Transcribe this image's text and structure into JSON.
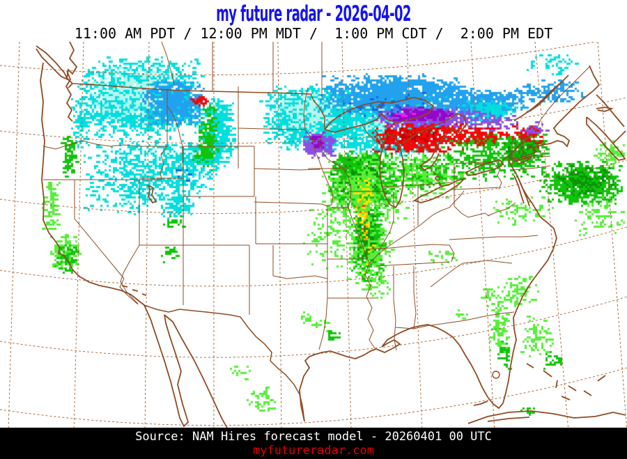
{
  "header": {
    "title": "my future radar - 2026-04-02",
    "title_color": "#1414ee",
    "times": "11:00 AM PDT / 12:00 PM MDT /  1:00 PM CDT /  2:00 PM EDT"
  },
  "footer": {
    "source": "Source: NAM Hires forecast model - 20260401 00 UTC",
    "link": "myfutureradar.com",
    "bar_color": "#000000",
    "source_color": "#ffffff",
    "link_color": "#e00000"
  },
  "map": {
    "background": "#ffffff",
    "line_color": "#8f4a22",
    "graticule_color": "#a2602e"
  },
  "radar": {
    "cell": 3,
    "palette": {
      "pale": "#b4f6ee",
      "cyan": "#00dede",
      "blue": "#22a2ee",
      "deep": "#1266e0",
      "violet": "#8a50e6",
      "purple": "#9606c8",
      "magenta": "#f818f8",
      "red": "#f20808",
      "dred": "#c40404",
      "lgreen": "#57ee3a",
      "green": "#10c40a",
      "dgreen": "#0a9406",
      "yellow": "#ffe300",
      "orange": "#ff9e00",
      "ored": "#ff5200"
    },
    "blobs": [
      [
        "cyan",
        200,
        78,
        90,
        58,
        0.9
      ],
      [
        "pale",
        195,
        70,
        70,
        40,
        0.35
      ],
      [
        "blue",
        247,
        87,
        48,
        34,
        0.95
      ],
      [
        "cyan",
        205,
        190,
        90,
        62,
        0.26
      ],
      [
        "cyan",
        272,
        178,
        48,
        42,
        0.3
      ],
      [
        "green",
        293,
        160,
        24,
        18,
        0.25
      ],
      [
        "cyan",
        253,
        235,
        26,
        18,
        0.45
      ],
      [
        "green",
        247,
        258,
        15,
        10,
        0.3
      ],
      [
        "cyan",
        310,
        128,
        27,
        50,
        0.75
      ],
      [
        "green",
        297,
        138,
        14,
        46,
        0.55
      ],
      [
        "green",
        98,
        163,
        11,
        36,
        0.5
      ],
      [
        "cyan",
        115,
        112,
        13,
        44,
        0.4
      ],
      [
        "red",
        284,
        83,
        13,
        8,
        0.5
      ],
      [
        "green",
        302,
        95,
        10,
        6,
        0.35
      ],
      [
        "cyan",
        450,
        108,
        80,
        48,
        1.1
      ],
      [
        "pale",
        445,
        100,
        60,
        35,
        0.3
      ],
      [
        "cyan",
        563,
        118,
        80,
        45,
        1.1
      ],
      [
        "pale",
        565,
        112,
        60,
        32,
        0.3
      ],
      [
        "blue",
        565,
        75,
        115,
        30,
        1.0
      ],
      [
        "blue",
        695,
        88,
        62,
        22,
        0.85
      ],
      [
        "blue",
        790,
        70,
        55,
        16,
        0.4
      ],
      [
        "cyan",
        700,
        98,
        45,
        18,
        0.5
      ],
      [
        "deep",
        560,
        92,
        90,
        26,
        0.05
      ],
      [
        "deep",
        265,
        185,
        20,
        15,
        0.05
      ],
      [
        "cyan",
        793,
        30,
        40,
        18,
        0.16
      ],
      [
        "violet",
        612,
        108,
        80,
        17,
        0.95
      ],
      [
        "purple",
        602,
        104,
        48,
        11,
        0.9
      ],
      [
        "violet",
        703,
        115,
        42,
        15,
        0.35
      ],
      [
        "violet",
        765,
        122,
        20,
        10,
        0.25
      ],
      [
        "magenta",
        575,
        104,
        40,
        8,
        0.06
      ],
      [
        "violet",
        456,
        147,
        24,
        21,
        1.0
      ],
      [
        "purple",
        452,
        143,
        12,
        12,
        0.5
      ],
      [
        "red",
        600,
        137,
        72,
        23,
        1.0
      ],
      [
        "dred",
        590,
        133,
        50,
        14,
        0.25
      ],
      [
        "red",
        692,
        137,
        46,
        16,
        0.5
      ],
      [
        "red",
        756,
        137,
        24,
        22,
        0.55
      ],
      [
        "violet",
        762,
        127,
        16,
        8,
        0.3
      ],
      [
        "green",
        520,
        200,
        50,
        45,
        1.0
      ],
      [
        "dgreen",
        512,
        190,
        40,
        28,
        0.5
      ],
      [
        "lgreen",
        522,
        212,
        65,
        58,
        0.32
      ],
      [
        "green",
        527,
        290,
        24,
        58,
        0.8
      ],
      [
        "lgreen",
        530,
        300,
        34,
        62,
        0.3
      ],
      [
        "dgreen",
        524,
        282,
        14,
        45,
        0.3
      ],
      [
        "yellow",
        520,
        228,
        16,
        55,
        0.16
      ],
      [
        "orange",
        518,
        258,
        9,
        38,
        0.08
      ],
      [
        "ored",
        517,
        248,
        8,
        30,
        0.04
      ],
      [
        "yellow",
        527,
        300,
        10,
        40,
        0.06
      ],
      [
        "lgreen",
        480,
        272,
        45,
        55,
        0.12
      ],
      [
        "green",
        497,
        177,
        22,
        20,
        0.5
      ],
      [
        "green",
        612,
        185,
        58,
        30,
        0.3
      ],
      [
        "lgreen",
        612,
        190,
        62,
        36,
        0.2
      ],
      [
        "green",
        700,
        165,
        72,
        35,
        0.28
      ],
      [
        "green",
        748,
        158,
        38,
        28,
        0.55
      ],
      [
        "dgreen",
        745,
        155,
        25,
        18,
        0.25
      ],
      [
        "green",
        833,
        202,
        62,
        33,
        0.7
      ],
      [
        "dgreen",
        838,
        198,
        45,
        24,
        0.28
      ],
      [
        "lgreen",
        860,
        250,
        40,
        28,
        0.15
      ],
      [
        "lgreen",
        875,
        160,
        25,
        20,
        0.3
      ],
      [
        "lgreen",
        748,
        240,
        48,
        26,
        0.12
      ],
      [
        "lgreen",
        92,
        300,
        24,
        30,
        0.45
      ],
      [
        "green",
        95,
        310,
        18,
        24,
        0.35
      ],
      [
        "lgreen",
        72,
        235,
        13,
        45,
        0.3
      ],
      [
        "green",
        243,
        303,
        14,
        12,
        0.3
      ],
      [
        "lgreen",
        437,
        395,
        12,
        8,
        0.3
      ],
      [
        "green",
        476,
        420,
        13,
        9,
        0.35
      ],
      [
        "lgreen",
        455,
        405,
        18,
        10,
        0.15
      ],
      [
        "lgreen",
        375,
        512,
        25,
        20,
        0.18
      ],
      [
        "lgreen",
        340,
        472,
        18,
        12,
        0.12
      ],
      [
        "lgreen",
        715,
        400,
        17,
        50,
        0.3
      ],
      [
        "green",
        722,
        448,
        12,
        25,
        0.25
      ],
      [
        "lgreen",
        745,
        358,
        28,
        25,
        0.22
      ],
      [
        "lgreen",
        768,
        425,
        26,
        35,
        0.22
      ],
      [
        "green",
        790,
        455,
        18,
        14,
        0.2
      ],
      [
        "lgreen",
        700,
        360,
        14,
        10,
        0.25
      ],
      [
        "lgreen",
        660,
        390,
        12,
        9,
        0.2
      ],
      [
        "green",
        755,
        528,
        16,
        6,
        0.3
      ],
      [
        "lgreen",
        630,
        305,
        30,
        15,
        0.1
      ],
      [
        "lgreen",
        545,
        352,
        20,
        25,
        0.12
      ]
    ]
  }
}
